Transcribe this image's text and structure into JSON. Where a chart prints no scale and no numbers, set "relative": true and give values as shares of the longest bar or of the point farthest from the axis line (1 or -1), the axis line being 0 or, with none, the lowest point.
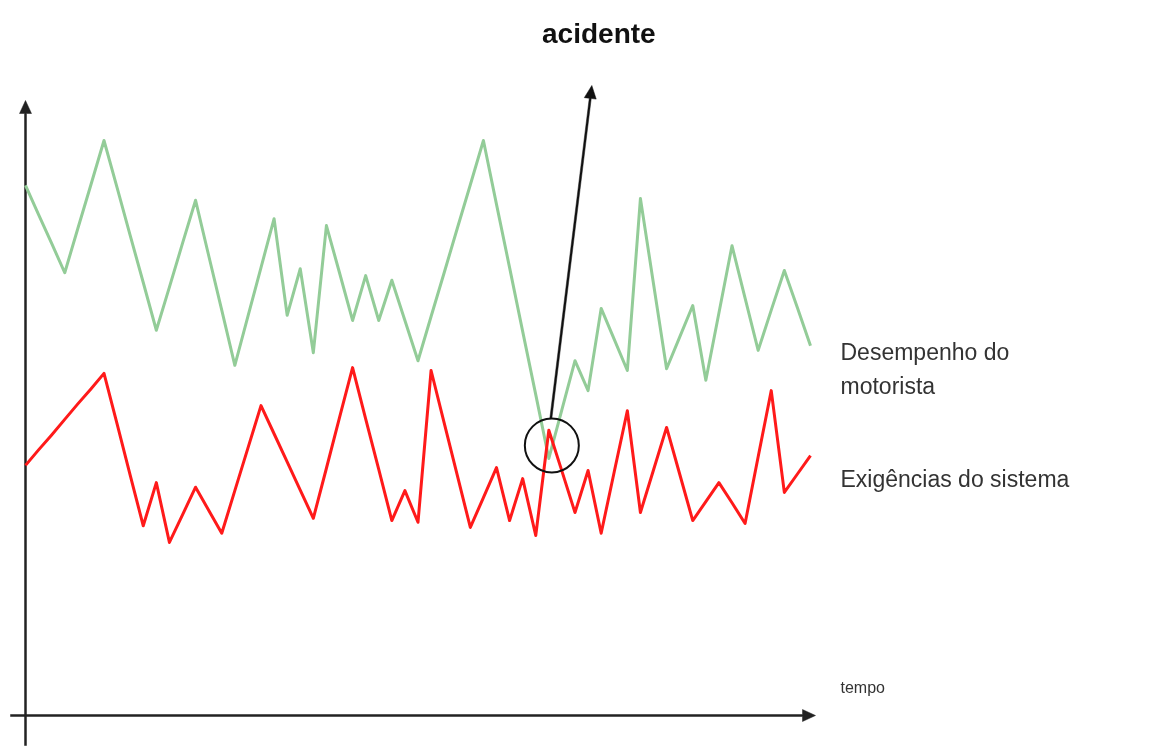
{
  "chart_data": {
    "type": "line",
    "relative": true,
    "xlabel": "tempo",
    "annotations": [
      "acidente"
    ],
    "categories": [
      null,
      null,
      null,
      null,
      null,
      null,
      null,
      null,
      null,
      null,
      null,
      null,
      null,
      null,
      null,
      null,
      null,
      null,
      null,
      null,
      null,
      null,
      null,
      null,
      null,
      null,
      null,
      null,
      null,
      null,
      null,
      null,
      null,
      null,
      null,
      null,
      null,
      null,
      null,
      null,
      null,
      null,
      null,
      null,
      null,
      null,
      null,
      null,
      null,
      null,
      null,
      null,
      null,
      null,
      null,
      null,
      null,
      null,
      null,
      null,
      null
    ],
    "series": [
      {
        "name": "Desempenho do motorista",
        "color": "#93cc98",
        "values": [
          0.922,
          0.871,
          0.821,
          0.77,
          0.847,
          0.923,
          1.0,
          0.918,
          0.835,
          0.753,
          0.67,
          0.745,
          0.821,
          0.896,
          0.8,
          0.705,
          0.609,
          0.694,
          0.779,
          0.864,
          0.696,
          0.777,
          0.631,
          0.852,
          0.77,
          0.687,
          0.765,
          0.687,
          0.757,
          0.687,
          0.617,
          0.694,
          0.77,
          0.847,
          0.923,
          1.0,
          0.889,
          0.779,
          0.668,
          0.558,
          0.447,
          0.532,
          0.617,
          0.565,
          0.708,
          0.654,
          0.6,
          0.899,
          0.751,
          0.603,
          0.658,
          0.713,
          0.583,
          0.7,
          0.817,
          0.726,
          0.635,
          0.705,
          0.774,
          0.709,
          0.643
        ]
      },
      {
        "name": "Exigências do sistema",
        "color": "#ff1a1a",
        "values": [
          0.435,
          0.462,
          0.488,
          0.515,
          0.542,
          0.568,
          0.595,
          0.507,
          0.418,
          0.33,
          0.405,
          0.301,
          0.349,
          0.397,
          0.357,
          0.317,
          0.391,
          0.465,
          0.539,
          0.49,
          0.441,
          0.392,
          0.343,
          0.43,
          0.518,
          0.605,
          0.516,
          0.428,
          0.339,
          0.391,
          0.336,
          0.6,
          0.509,
          0.418,
          0.327,
          0.379,
          0.431,
          0.339,
          0.412,
          0.313,
          0.496,
          0.425,
          0.353,
          0.426,
          0.317,
          0.424,
          0.53,
          0.353,
          0.427,
          0.501,
          0.42,
          0.339,
          0.372,
          0.405,
          0.37,
          0.334,
          0.45,
          0.565,
          0.388,
          0.42,
          0.452
        ]
      }
    ]
  }
}
